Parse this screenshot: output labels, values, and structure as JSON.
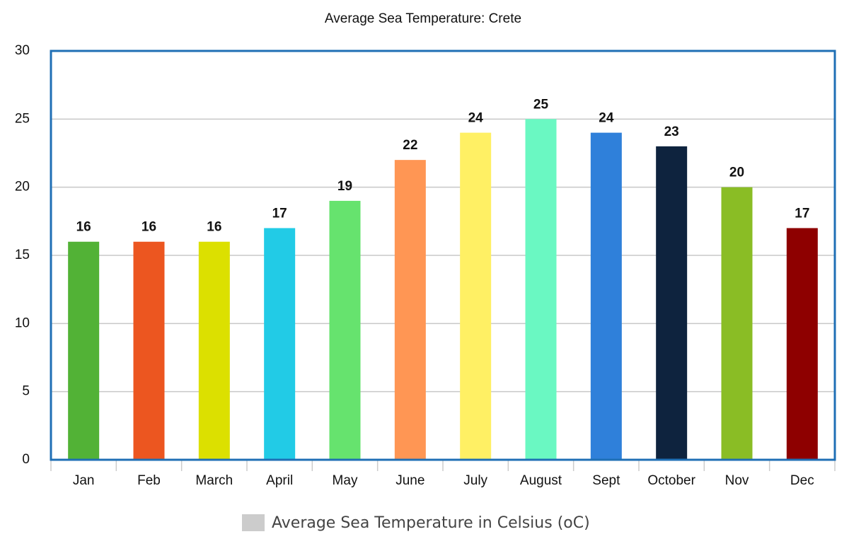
{
  "chart_data": {
    "type": "bar",
    "title": "Average Sea Temperature: Crete",
    "categories": [
      "Jan",
      "Feb",
      "March",
      "April",
      "May",
      "June",
      "July",
      "August",
      "Sept",
      "October",
      "Nov",
      "Dec"
    ],
    "series": [
      {
        "name": "Average Sea Temperature in Celsius (oC)",
        "color": "#cccccc",
        "values": [
          16,
          16,
          16,
          17,
          19,
          22,
          24,
          25,
          24,
          23,
          20,
          17
        ],
        "colors": [
          "#52b236",
          "#ec5620",
          "#dce000",
          "#22cbe6",
          "#66e36e",
          "#ff9654",
          "#fff064",
          "#6af8c2",
          "#2f80da",
          "#0e233e",
          "#8abd25",
          "#8e0000"
        ]
      }
    ],
    "ylim": [
      0,
      30
    ],
    "yticks": [
      0,
      5,
      10,
      15,
      20,
      25,
      30
    ],
    "grid": true,
    "legend": "bottom"
  }
}
